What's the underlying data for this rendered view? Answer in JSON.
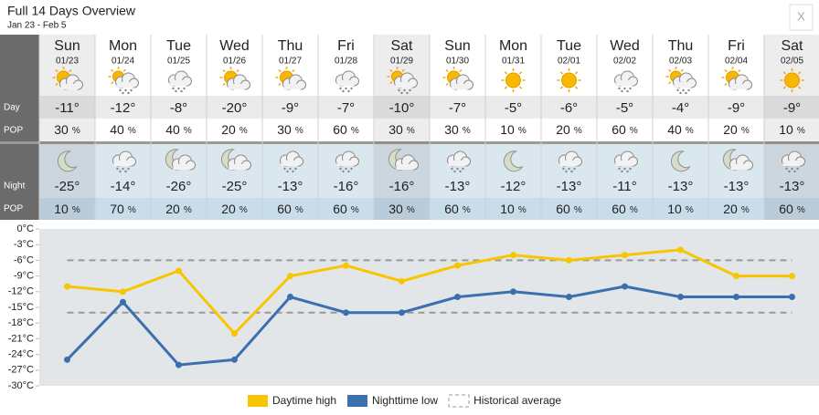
{
  "header": {
    "title": "Full 14 Days Overview",
    "subtitle": "Jan 23 - Feb 5",
    "close": "X"
  },
  "table": {
    "row_labels": [
      "Day",
      "POP",
      "Night",
      "POP"
    ],
    "pop_unit": "%",
    "columns": [
      {
        "day": "Sun",
        "date": "01/23",
        "day_temp": "-11°",
        "day_pop": 30,
        "night_temp": "-25°",
        "night_pop": 10
      },
      {
        "day": "Mon",
        "date": "01/24",
        "day_temp": "-12°",
        "day_pop": 40,
        "night_temp": "-14°",
        "night_pop": 70
      },
      {
        "day": "Tue",
        "date": "01/25",
        "day_temp": "-8°",
        "day_pop": 40,
        "night_temp": "-26°",
        "night_pop": 20
      },
      {
        "day": "Wed",
        "date": "01/26",
        "day_temp": "-20°",
        "day_pop": 20,
        "night_temp": "-25°",
        "night_pop": 20
      },
      {
        "day": "Thu",
        "date": "01/27",
        "day_temp": "-9°",
        "day_pop": 30,
        "night_temp": "-13°",
        "night_pop": 60
      },
      {
        "day": "Fri",
        "date": "01/28",
        "day_temp": "-7°",
        "day_pop": 60,
        "night_temp": "-16°",
        "night_pop": 60
      },
      {
        "day": "Sat",
        "date": "01/29",
        "day_temp": "-10°",
        "day_pop": 30,
        "night_temp": "-16°",
        "night_pop": 30
      },
      {
        "day": "Sun",
        "date": "01/30",
        "day_temp": "-7°",
        "day_pop": 30,
        "night_temp": "-13°",
        "night_pop": 60
      },
      {
        "day": "Mon",
        "date": "01/31",
        "day_temp": "-5°",
        "day_pop": 10,
        "night_temp": "-12°",
        "night_pop": 10
      },
      {
        "day": "Tue",
        "date": "02/01",
        "day_temp": "-6°",
        "day_pop": 20,
        "night_temp": "-13°",
        "night_pop": 60
      },
      {
        "day": "Wed",
        "date": "02/02",
        "day_temp": "-5°",
        "day_pop": 60,
        "night_temp": "-11°",
        "night_pop": 60
      },
      {
        "day": "Thu",
        "date": "02/03",
        "day_temp": "-4°",
        "day_pop": 40,
        "night_temp": "-13°",
        "night_pop": 10
      },
      {
        "day": "Fri",
        "date": "02/04",
        "day_temp": "-9°",
        "day_pop": 20,
        "night_temp": "-13°",
        "night_pop": 20
      },
      {
        "day": "Sat",
        "date": "02/05",
        "day_temp": "-9°",
        "day_pop": 10,
        "night_temp": "-13°",
        "night_pop": 60
      }
    ]
  },
  "chart_data": {
    "type": "line",
    "series": [
      {
        "name": "Daytime high",
        "color": "#f7c600",
        "values": [
          -11,
          -12,
          -8,
          -20,
          -9,
          -7,
          -10,
          -7,
          -5,
          -6,
          -5,
          -4,
          -9,
          -9
        ]
      },
      {
        "name": "Nighttime low",
        "color": "#3b6fae",
        "values": [
          -25,
          -14,
          -26,
          -25,
          -13,
          -16,
          -16,
          -13,
          -12,
          -13,
          -11,
          -13,
          -13,
          -13
        ]
      }
    ],
    "reference": {
      "name": "Historical average",
      "color": "#999999",
      "values": [
        -6,
        -16
      ]
    },
    "ylim": [
      0,
      -30
    ],
    "yticks": [
      {
        "value": 0,
        "label": "0°C"
      },
      {
        "value": -3,
        "label": "-3°C"
      },
      {
        "value": -6,
        "label": "-6°C"
      },
      {
        "value": -9,
        "label": "-9°C"
      },
      {
        "value": -12,
        "label": "-12°C"
      },
      {
        "value": -15,
        "label": "-15°C"
      },
      {
        "value": -18,
        "label": "-18°C"
      },
      {
        "value": -21,
        "label": "-21°C"
      },
      {
        "value": -24,
        "label": "-24°C"
      },
      {
        "value": -27,
        "label": "-27°C"
      },
      {
        "value": -30,
        "label": "-30°C"
      }
    ]
  }
}
